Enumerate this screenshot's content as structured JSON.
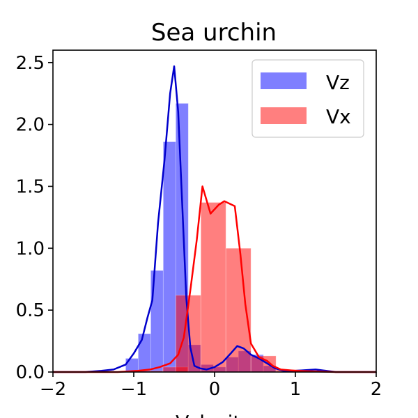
{
  "chart_data": {
    "type": "bar",
    "title": "Sea urchin",
    "xlabel": "Velocity",
    "ylabel": "",
    "xlim": [
      -2,
      2
    ],
    "ylim": [
      0,
      2.6
    ],
    "grid": false,
    "legend_placement": "top-right",
    "x_ticks": [
      -2,
      -1,
      0,
      1,
      2
    ],
    "x_tick_labels": [
      "−2",
      "−1",
      "0",
      "1",
      "2"
    ],
    "y_ticks": [
      0,
      0.5,
      1.0,
      1.5,
      2.0,
      2.5
    ],
    "y_tick_labels": [
      "0.0",
      "0.5",
      "1.0",
      "1.5",
      "2.0",
      "2.5"
    ],
    "series": [
      {
        "name": "Vz",
        "type": "histogram",
        "color": "#0000ff",
        "bin_width": 0.155,
        "bins": [
          {
            "x0": -1.1,
            "value": 0.11
          },
          {
            "x0": -0.945,
            "value": 0.31
          },
          {
            "x0": -0.79,
            "value": 0.82
          },
          {
            "x0": -0.635,
            "value": 1.86
          },
          {
            "x0": -0.48,
            "value": 2.17
          },
          {
            "x0": -0.325,
            "value": 0.22
          },
          {
            "x0": -0.17,
            "value": 0.06
          },
          {
            "x0": -0.015,
            "value": 0.04
          },
          {
            "x0": 0.14,
            "value": 0.12
          },
          {
            "x0": 0.295,
            "value": 0.17
          },
          {
            "x0": 0.45,
            "value": 0.14
          },
          {
            "x0": 0.605,
            "value": 0.05
          }
        ]
      },
      {
        "name": "Vx",
        "type": "histogram",
        "color": "#ff0000",
        "bin_width": 0.31,
        "bins": [
          {
            "x0": -0.95,
            "value": 0.01
          },
          {
            "x0": -0.64,
            "value": 0.04
          },
          {
            "x0": -0.48,
            "value": 0.62
          },
          {
            "x0": -0.17,
            "value": 1.37
          },
          {
            "x0": 0.14,
            "value": 1.0
          },
          {
            "x0": 0.45,
            "value": 0.13
          },
          {
            "x0": 0.76,
            "value": 0.02
          }
        ]
      }
    ],
    "density_lines": [
      {
        "series": "Vz",
        "color": "#0000cc",
        "points": [
          [
            -2.0,
            0.0
          ],
          [
            -1.6,
            0.0
          ],
          [
            -1.4,
            0.01
          ],
          [
            -1.25,
            0.02
          ],
          [
            -1.1,
            0.06
          ],
          [
            -1.0,
            0.15
          ],
          [
            -0.9,
            0.26
          ],
          [
            -0.83,
            0.44
          ],
          [
            -0.77,
            0.58
          ],
          [
            -0.7,
            1.2
          ],
          [
            -0.62,
            1.71
          ],
          [
            -0.55,
            2.25
          ],
          [
            -0.5,
            2.47
          ],
          [
            -0.45,
            2.1
          ],
          [
            -0.4,
            1.35
          ],
          [
            -0.35,
            0.6
          ],
          [
            -0.3,
            0.2
          ],
          [
            -0.25,
            0.05
          ],
          [
            -0.18,
            0.03
          ],
          [
            -0.1,
            0.02
          ],
          [
            0.0,
            0.04
          ],
          [
            0.1,
            0.08
          ],
          [
            0.2,
            0.15
          ],
          [
            0.28,
            0.21
          ],
          [
            0.36,
            0.19
          ],
          [
            0.45,
            0.14
          ],
          [
            0.55,
            0.11
          ],
          [
            0.65,
            0.07
          ],
          [
            0.75,
            0.03
          ],
          [
            0.85,
            0.01
          ],
          [
            1.0,
            0.01
          ],
          [
            1.25,
            0.02
          ],
          [
            1.5,
            0.0
          ],
          [
            2.0,
            0.0
          ]
        ]
      },
      {
        "series": "Vx",
        "color": "#ff0000",
        "points": [
          [
            -2.0,
            0.0
          ],
          [
            -1.2,
            0.0
          ],
          [
            -0.95,
            0.01
          ],
          [
            -0.8,
            0.02
          ],
          [
            -0.68,
            0.04
          ],
          [
            -0.55,
            0.07
          ],
          [
            -0.45,
            0.14
          ],
          [
            -0.38,
            0.28
          ],
          [
            -0.3,
            0.66
          ],
          [
            -0.22,
            1.07
          ],
          [
            -0.15,
            1.5
          ],
          [
            -0.05,
            1.28
          ],
          [
            0.05,
            1.35
          ],
          [
            0.12,
            1.38
          ],
          [
            0.25,
            1.34
          ],
          [
            0.32,
            0.95
          ],
          [
            0.38,
            0.55
          ],
          [
            0.45,
            0.23
          ],
          [
            0.55,
            0.12
          ],
          [
            0.65,
            0.09
          ],
          [
            0.72,
            0.05
          ],
          [
            0.82,
            0.02
          ],
          [
            1.0,
            0.01
          ],
          [
            1.5,
            0.0
          ],
          [
            2.0,
            0.0
          ]
        ]
      }
    ]
  }
}
